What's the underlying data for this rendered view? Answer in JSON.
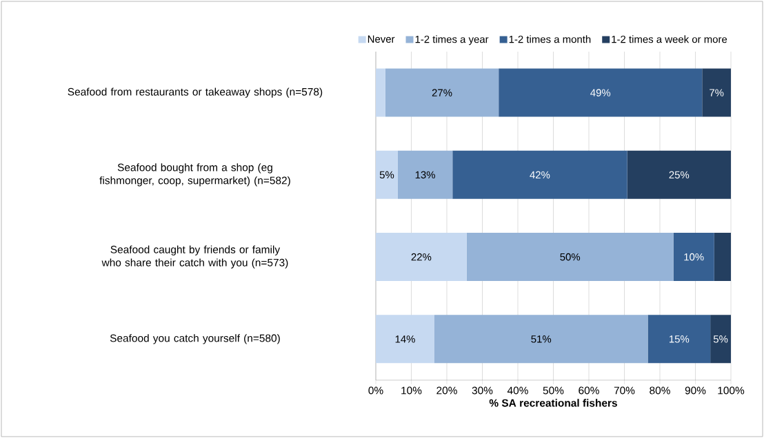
{
  "chart_data": {
    "type": "bar",
    "orientation": "horizontal",
    "stacked": true,
    "xlabel": "% SA recreational fishers",
    "categories": [
      "Seafood from restaurants or takeaway shops (n=578)",
      "Seafood bought from a shop (eg fishmonger, coop, supermarket) (n=582)",
      "Seafood caught by friends or family who share their catch with you (n=573)",
      "Seafood you catch yourself (n=580)"
    ],
    "series": [
      {
        "name": "Never",
        "color": "#c6d9f1",
        "values": [
          2.7,
          6.2,
          25.6,
          16.5
        ]
      },
      {
        "name": "1-2 times a year",
        "color": "#95b3d7",
        "values": [
          31.9,
          15.4,
          58.2,
          60.1
        ]
      },
      {
        "name": "1-2 times a month",
        "color": "#366092",
        "values": [
          57.3,
          49.2,
          11.5,
          17.6
        ]
      },
      {
        "name": "1-2 times a week or more",
        "color": "#243f60",
        "values": [
          8.1,
          29.2,
          4.7,
          5.8
        ]
      }
    ],
    "annotations": [
      "27%",
      "49%",
      "7%",
      "5%",
      "13%",
      "42%",
      "25%",
      "22%",
      "50%",
      "10%",
      "14%",
      "51%",
      "15%",
      "5%"
    ],
    "xlim": [
      0,
      100
    ],
    "xticks": [
      {
        "value": 0,
        "label": "0%"
      },
      {
        "value": 10,
        "label": "10%"
      },
      {
        "value": 20,
        "label": "20%"
      },
      {
        "value": 30,
        "label": "30%"
      },
      {
        "value": 40,
        "label": "40%"
      },
      {
        "value": 50,
        "label": "50%"
      },
      {
        "value": 60,
        "label": "60%"
      },
      {
        "value": 70,
        "label": "70%"
      },
      {
        "value": 80,
        "label": "80%"
      },
      {
        "value": 90,
        "label": "90%"
      },
      {
        "value": 100,
        "label": "100%"
      }
    ],
    "grid": "x",
    "legend": "top"
  }
}
